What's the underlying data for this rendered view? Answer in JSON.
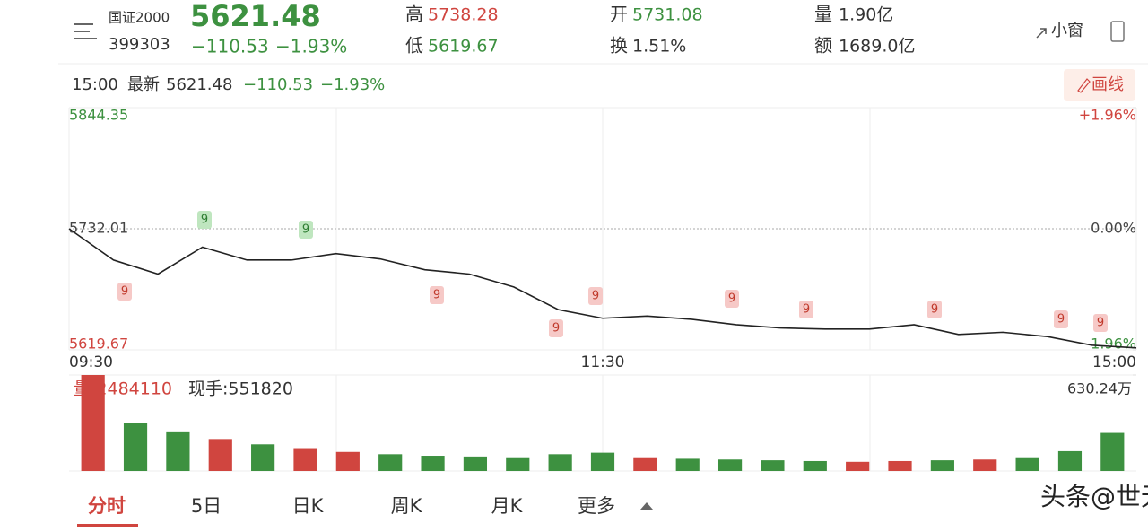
{
  "header": {
    "name": "国证2000",
    "code": "399303",
    "price": "5621.48",
    "change": "−110.53",
    "change_pct": "−1.93%",
    "high_label": "高",
    "high": "5738.28",
    "low_label": "低",
    "low": "5619.67",
    "open_label": "开",
    "open": "5731.08",
    "turnover_label": "换",
    "turnover": "1.51%",
    "volume_label": "量",
    "volume": "1.90亿",
    "amount_label": "额",
    "amount": "1689.0亿",
    "small_window": "小窗"
  },
  "info_bar": {
    "time": "15:00",
    "latest_label": "最新",
    "latest": "5621.48",
    "change": "−110.53",
    "change_pct": "−1.93%",
    "draw_button": "画线"
  },
  "chart_data": [
    {
      "type": "line",
      "color": "#222222",
      "categories": [
        "09:30",
        null,
        null,
        null,
        null,
        null,
        null,
        null,
        null,
        null,
        null,
        null,
        "11:30",
        null,
        null,
        null,
        null,
        null,
        null,
        null,
        null,
        null,
        null,
        null,
        "15:00"
      ],
      "values": [
        5732.01,
        5703,
        5690,
        5715,
        5703,
        5703,
        5709,
        5704,
        5694,
        5690,
        5678,
        5657,
        5649,
        5651,
        5648,
        5643,
        5640,
        5639,
        5639,
        5643,
        5634,
        5636,
        5632,
        5624,
        5621.48
      ],
      "ylim": [
        5619.67,
        5844.35
      ],
      "yticks": [
        5619.67,
        5732.01,
        5844.35
      ],
      "y2lim": [
        -1.96,
        1.96
      ],
      "y2ticks": [
        {
          "value": -1.96,
          "label": "-1.96%"
        },
        {
          "value": 0,
          "label": "0.00%"
        },
        {
          "value": 1.96,
          "label": "+1.96%"
        }
      ],
      "signals": [
        "9",
        "9",
        "9",
        "9",
        "9",
        "9",
        "9",
        "9",
        "9",
        "9",
        "9"
      ]
    },
    {
      "type": "bar",
      "volume_text": "量:2484110",
      "hand_text": "现手:551820",
      "up_color": "#d0453f",
      "down_color": "#3d9140",
      "values": [
        6302400,
        3150000,
        2600000,
        2100000,
        1750000,
        1500000,
        1250000,
        1100000,
        1000000,
        950000,
        900000,
        1100000,
        1200000,
        900000,
        800000,
        750000,
        700000,
        650000,
        600000,
        650000,
        700000,
        750000,
        900000,
        1300000,
        2500000
      ],
      "ylim": [
        0,
        6302400
      ],
      "yticks": [
        {
          "value": 6302400,
          "label": "630.24万"
        }
      ]
    }
  ],
  "tabs": [
    "分时",
    "5日",
    "日K",
    "周K",
    "月K",
    "更多"
  ],
  "watermark": "头条@世无限"
}
